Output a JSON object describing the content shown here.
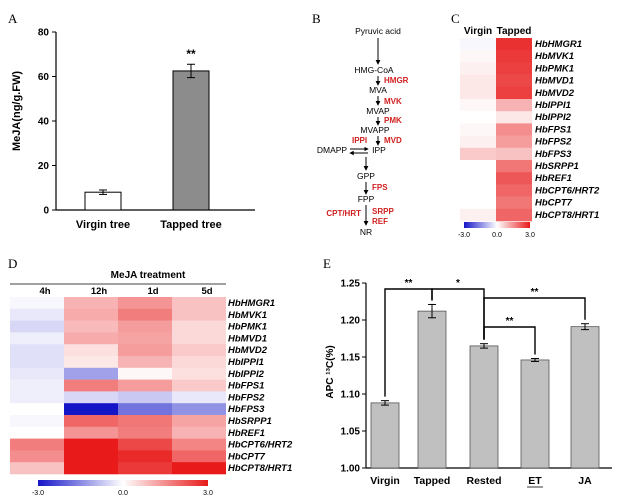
{
  "panel_letters": [
    "A",
    "B",
    "C",
    "D",
    "E"
  ],
  "chart_data": [
    {
      "panel": "A",
      "type": "bar",
      "categories": [
        "Virgin tree",
        "Tapped tree"
      ],
      "values": [
        8,
        62.5
      ],
      "errors": [
        1,
        3
      ],
      "colors": [
        "#ffffff",
        "#8c8c8c"
      ],
      "ylabel": "MeJA(ng/g.FW)",
      "yticks": [
        "0",
        "20",
        "40",
        "60",
        "80"
      ],
      "ylim": [
        0,
        80
      ],
      "annotations": [
        "**"
      ]
    },
    {
      "panel": "B",
      "type": "pathway",
      "nodes": [
        "Pyruvic acid",
        "HMG-CoA",
        "MVA",
        "MVAP",
        "MVAPP",
        "DMAPP",
        "IPP",
        "GPP",
        "FPP",
        "NR"
      ],
      "enzymes": [
        "HMGR",
        "MVK",
        "PMK",
        "MVD",
        "IPPI",
        "FPS",
        "CPT/HRT",
        "SRPP",
        "REF"
      ]
    },
    {
      "panel": "C",
      "type": "heatmap",
      "columns": [
        "Virgin",
        "Tapped"
      ],
      "rows": [
        "HbHMGR1",
        "HbMVK1",
        "HbPMK1",
        "HbMVD1",
        "HbMVD2",
        "HbIPPI1",
        "HbIPPI2",
        "HbFPS1",
        "HbFPS2",
        "HbFPS3",
        "HbSRPP1",
        "HbREF1",
        "HbCPT6/HRT2",
        "HbCPT7",
        "HbCPT8/HRT1"
      ],
      "values": [
        [
          -0.1,
          2.7
        ],
        [
          0.1,
          2.6
        ],
        [
          0.2,
          2.5
        ],
        [
          0.3,
          2.4
        ],
        [
          0.3,
          2.5
        ],
        [
          0.1,
          1.0
        ],
        [
          0.0,
          0.3
        ],
        [
          0.1,
          1.5
        ],
        [
          0.2,
          1.3
        ],
        [
          0.7,
          0.8
        ],
        [
          0.0,
          1.8
        ],
        [
          0.0,
          2.2
        ],
        [
          0.0,
          2.0
        ],
        [
          0.0,
          1.8
        ],
        [
          0.2,
          2.0
        ]
      ],
      "colorbar": {
        "min": "-3.0",
        "mid": "0.0",
        "max": "3.0"
      }
    },
    {
      "panel": "D",
      "type": "heatmap",
      "title": "MeJA treatment",
      "columns": [
        "4h",
        "12h",
        "1d",
        "5d"
      ],
      "rows": [
        "HbHMGR1",
        "HbMVK1",
        "HbPMK1",
        "HbMVD1",
        "HbMVD2",
        "HbIPPI1",
        "HbIPPI2",
        "HbFPS1",
        "HbFPS2",
        "HbFPS3",
        "HbSRPP1",
        "HbREF1",
        "HbCPT6/HRT2",
        "HbCPT7",
        "HbCPT8/HRT1"
      ],
      "values": [
        [
          -0.1,
          1.0,
          1.4,
          0.8
        ],
        [
          -0.3,
          1.1,
          1.7,
          0.8
        ],
        [
          -0.5,
          0.9,
          1.3,
          0.5
        ],
        [
          -0.2,
          1.1,
          1.2,
          0.5
        ],
        [
          -0.4,
          0.4,
          1.3,
          0.7
        ],
        [
          -0.4,
          0.3,
          1.0,
          0.5
        ],
        [
          -0.3,
          -1.2,
          0.1,
          0.4
        ],
        [
          -0.2,
          1.7,
          1.3,
          0.7
        ],
        [
          -0.2,
          -0.5,
          -0.7,
          -0.3
        ],
        [
          0.0,
          -3.0,
          -1.8,
          -1.4
        ],
        [
          -0.1,
          2.0,
          1.8,
          1.2
        ],
        [
          0.0,
          1.4,
          1.7,
          1.0
        ],
        [
          1.7,
          3.0,
          2.4,
          1.6
        ],
        [
          1.5,
          3.0,
          2.8,
          2.0
        ],
        [
          0.8,
          3.0,
          2.6,
          3.0
        ]
      ],
      "colorbar": {
        "min": "-3.0",
        "mid": "0.0",
        "max": "3.0"
      }
    },
    {
      "panel": "E",
      "type": "bar",
      "categories": [
        "Virgin",
        "Tapped",
        "Rested",
        "ET",
        "JA"
      ],
      "values": [
        1.088,
        1.212,
        1.165,
        1.146,
        1.191
      ],
      "errors": [
        0.003,
        0.009,
        0.003,
        0.002,
        0.004
      ],
      "color": "#c0c0c0",
      "ylabel": "APC ¹³C(%)",
      "yticks": [
        "1.00",
        "1.05",
        "1.10",
        "1.15",
        "1.20",
        "1.25"
      ],
      "ylim": [
        1.0,
        1.25
      ],
      "significance": [
        "**",
        "*",
        "**",
        "**"
      ]
    }
  ]
}
